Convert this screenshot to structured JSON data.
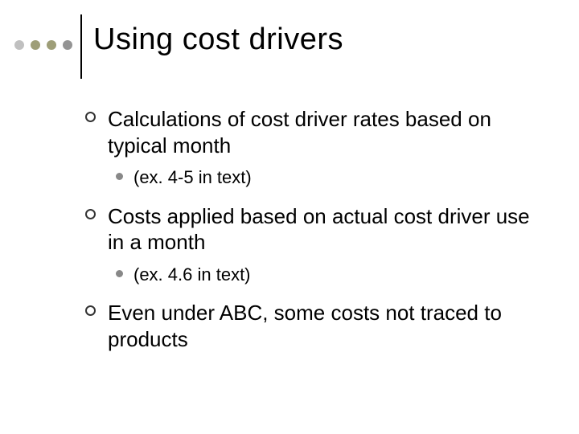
{
  "slide": {
    "title": "Using cost drivers",
    "title_fontsize": 38,
    "background_color": "#ffffff",
    "text_color": "#000000"
  },
  "decor": {
    "dot_colors": [
      "#c0c0c0",
      "#9e9e78",
      "#9e9e78",
      "#949494"
    ],
    "dot_size": 12,
    "divider_color": "#000000"
  },
  "bullets": {
    "level1_fontsize": 26,
    "level2_fontsize": 22,
    "ring_color": "#333333",
    "dot_color": "#888888",
    "items": [
      {
        "text": "Calculations of cost driver rates based on typical month",
        "sub": "(ex. 4-5 in text)"
      },
      {
        "text": "Costs applied based on actual cost driver use in a month",
        "sub": "(ex. 4.6 in text)"
      },
      {
        "text": "Even under ABC, some costs not traced to products",
        "sub": null
      }
    ]
  }
}
